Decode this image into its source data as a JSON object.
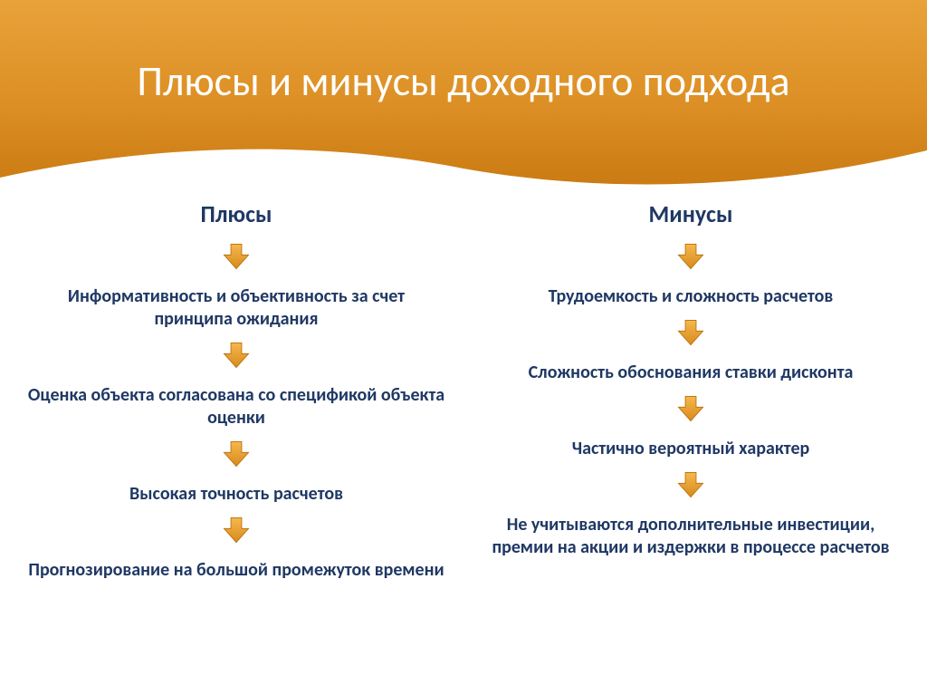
{
  "slide": {
    "title": "Плюсы и минусы доходного подхода",
    "title_fontsize": 46,
    "title_color": "#ffffff",
    "background_color": "#ffffff"
  },
  "header": {
    "gradient_start": "#e8a23a",
    "gradient_mid": "#dc8f24",
    "gradient_end": "#c97a12",
    "wave_color": "#ffffff"
  },
  "arrow": {
    "fill_light": "#f6b84e",
    "fill_dark": "#d88a1a",
    "stroke": "#b86e0a",
    "width": 34,
    "height": 34
  },
  "typography": {
    "text_color": "#1f3864",
    "col_title_fontsize": 26,
    "item_fontsize": 20
  },
  "columns": {
    "left": {
      "title": "Плюсы",
      "items": [
        "Информативность и объективность за счет принципа ожидания",
        "Оценка объекта согласована со спецификой объекта оценки",
        "Высокая точность расчетов",
        "Прогнозирование на большой промежуток времени"
      ]
    },
    "right": {
      "title": "Минусы",
      "items": [
        "Трудоемкость и сложность расчетов",
        "Сложность обоснования ставки дисконта",
        "Частично вероятный характер",
        "Не учитываются дополнительные инвестиции, премии на акции и издержки в процессе расчетов"
      ]
    }
  }
}
